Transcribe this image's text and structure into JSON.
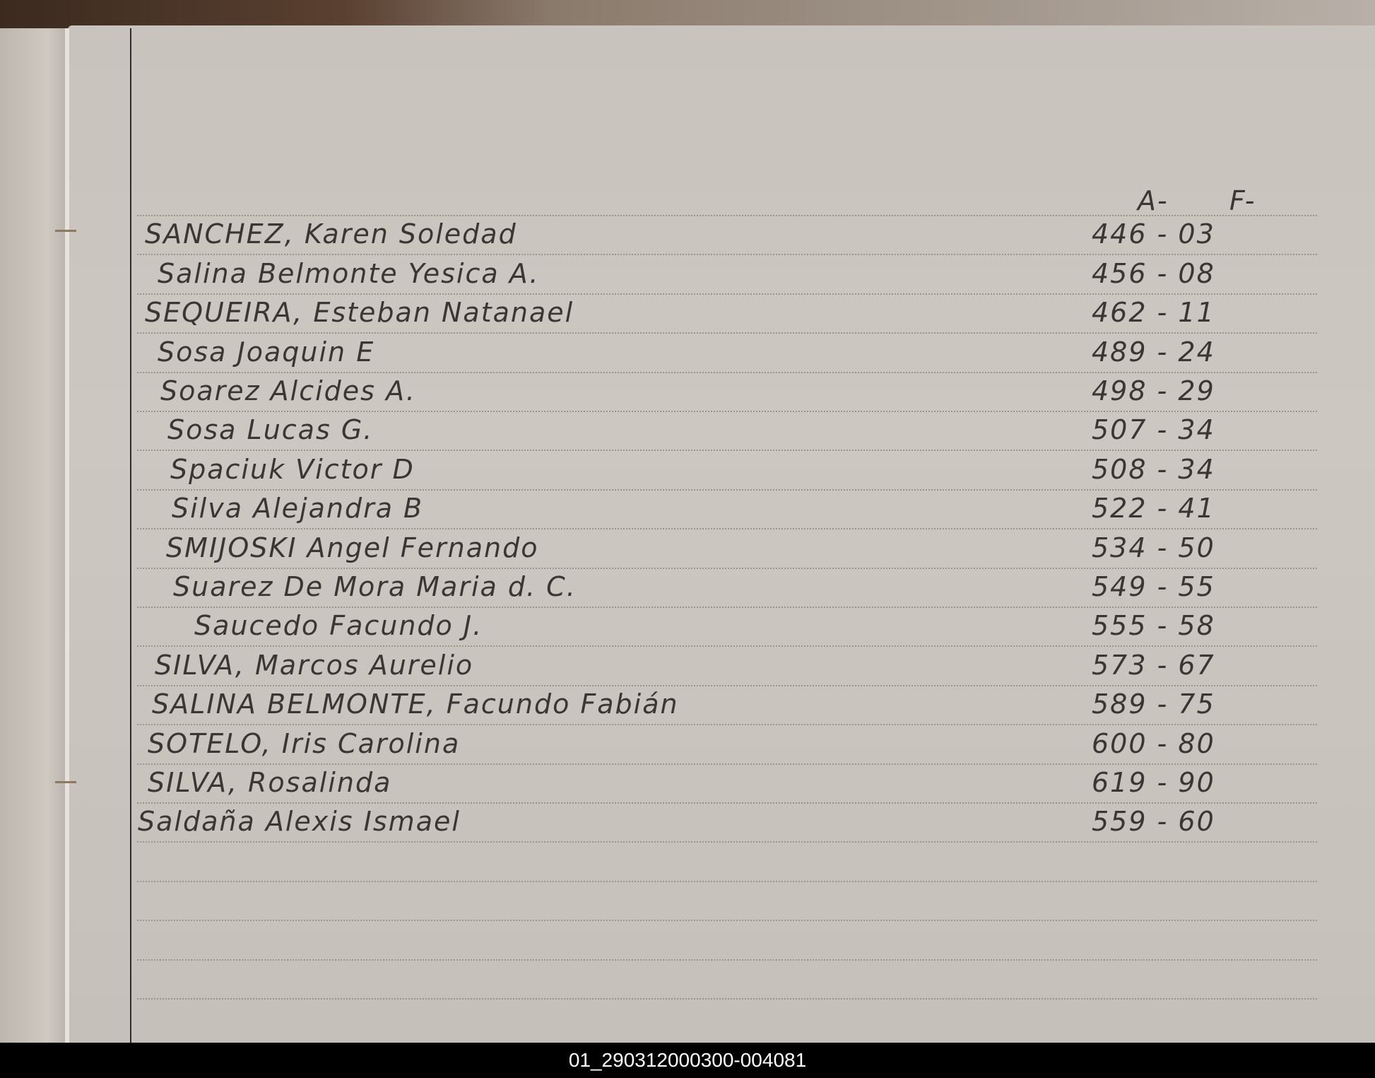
{
  "header": {
    "col_a": "A-",
    "col_f": "F-"
  },
  "entries": [
    {
      "name": "SANCHEZ, Karen Soledad",
      "a": "446",
      "f": "03"
    },
    {
      "name": "Salina Belmonte Yesica A.",
      "a": "456",
      "f": "08"
    },
    {
      "name": "SEQUEIRA, Esteban Natanael",
      "a": "462",
      "f": "11"
    },
    {
      "name": "Sosa Joaquin E",
      "a": "489",
      "f": "24"
    },
    {
      "name": "Soarez Alcides A.",
      "a": "498",
      "f": "29"
    },
    {
      "name": "Sosa Lucas G.",
      "a": "507",
      "f": "34"
    },
    {
      "name": "Spaciuk Victor D",
      "a": "508",
      "f": "34"
    },
    {
      "name": "Silva Alejandra B",
      "a": "522",
      "f": "41"
    },
    {
      "name": "SMIJOSKI Angel Fernando",
      "a": "534",
      "f": "50"
    },
    {
      "name": "Suarez De Mora Maria d. C.",
      "a": "549",
      "f": "55"
    },
    {
      "name": "Saucedo Facundo J.",
      "a": "555",
      "f": "58"
    },
    {
      "name": "SILVA, Marcos Aurelio",
      "a": "573",
      "f": "67"
    },
    {
      "name": "SALINA BELMONTE, Facundo Fabián",
      "a": "589",
      "f": "75"
    },
    {
      "name": "SOTELO, Iris Carolina",
      "a": "600",
      "f": "80"
    },
    {
      "name": "SILVA, Rosalinda",
      "a": "619",
      "f": "90"
    },
    {
      "name": "Saldaña Alexis Ismael",
      "a": "559",
      "f": "60"
    }
  ],
  "caption": "01_290312000300-004081",
  "colors": {
    "ink": "#3a3632",
    "paper": "#cbc5bf",
    "caption_bg": "#000000"
  }
}
